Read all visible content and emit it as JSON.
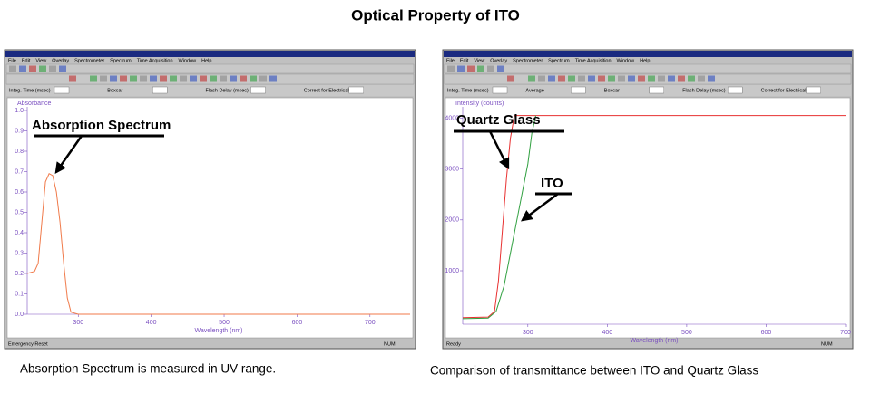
{
  "title": "Optical Property of ITO",
  "windows": [
    {
      "menu": [
        "File",
        "Edit",
        "View",
        "Overlay",
        "Spectrometer",
        "Spectrum",
        "Time Acquisition",
        "Window",
        "Help"
      ],
      "controls": [
        "Integ. Time (msec)",
        "Boxcar",
        "Flash Delay (msec)",
        "Correct for Electrical Dark"
      ],
      "status": [
        "Emergency Reset",
        "NUM"
      ]
    },
    {
      "menu": [
        "File",
        "Edit",
        "View",
        "Overlay",
        "Spectrometer",
        "Spectrum",
        "Time Acquisition",
        "Window",
        "Help"
      ],
      "controls": [
        "Integ. Time (msec)",
        "Average",
        "Boxcar",
        "Flash Delay (msec)",
        "Correct for Electrical Dark"
      ],
      "status": [
        "Ready",
        "NUM"
      ]
    }
  ],
  "chart_data": [
    {
      "type": "line",
      "caption": "Absorption Spectrum is measured in UV range.",
      "y_label": "Absorbance",
      "x_label": "Wavelength (nm)",
      "annotations": [
        "Absorption Spectrum"
      ],
      "xlim": [
        230,
        755
      ],
      "xticks": [
        300,
        400,
        500,
        600,
        700
      ],
      "ylim": [
        0,
        1
      ],
      "yticks": [
        {
          "value": 0,
          "label": "0.0"
        },
        0.1,
        0.2,
        0.3,
        0.4,
        0.5,
        0.6,
        0.7,
        0.8,
        0.9,
        {
          "value": 1,
          "label": "1.0"
        }
      ],
      "series": [
        {
          "color": "#f07a4a",
          "x": [
            230,
            240,
            245,
            250,
            255,
            260,
            265,
            270,
            275,
            280,
            285,
            290,
            300,
            400,
            500,
            600,
            700,
            755
          ],
          "values": [
            0.2,
            0.21,
            0.25,
            0.45,
            0.65,
            0.69,
            0.68,
            0.6,
            0.45,
            0.25,
            0.08,
            0.01,
            0,
            0,
            0,
            0,
            0,
            0
          ]
        }
      ]
    },
    {
      "type": "line",
      "caption": "Comparison of transmittance between ITO and Quartz Glass",
      "y_label": "Intensity (counts)",
      "x_label": "Wavelength (nm)",
      "annotations": [
        "Quartz Glass",
        "ITO"
      ],
      "xlim": [
        218,
        700
      ],
      "xticks": [
        300,
        400,
        500,
        600,
        700
      ],
      "ylim": [
        -50,
        4150
      ],
      "yticks": [
        1000,
        2000,
        3000,
        4000
      ],
      "series": [
        {
          "color": "#e83030",
          "x": [
            218,
            250,
            258,
            263,
            268,
            273,
            278,
            283,
            700
          ],
          "values": [
            80,
            90,
            200,
            800,
            1800,
            2800,
            3600,
            4050,
            4050
          ]
        },
        {
          "color": "#30a040",
          "x": [
            218,
            250,
            260,
            270,
            280,
            290,
            300,
            305,
            310
          ],
          "values": [
            60,
            70,
            200,
            700,
            1500,
            2300,
            3100,
            3700,
            4050
          ]
        }
      ]
    }
  ]
}
